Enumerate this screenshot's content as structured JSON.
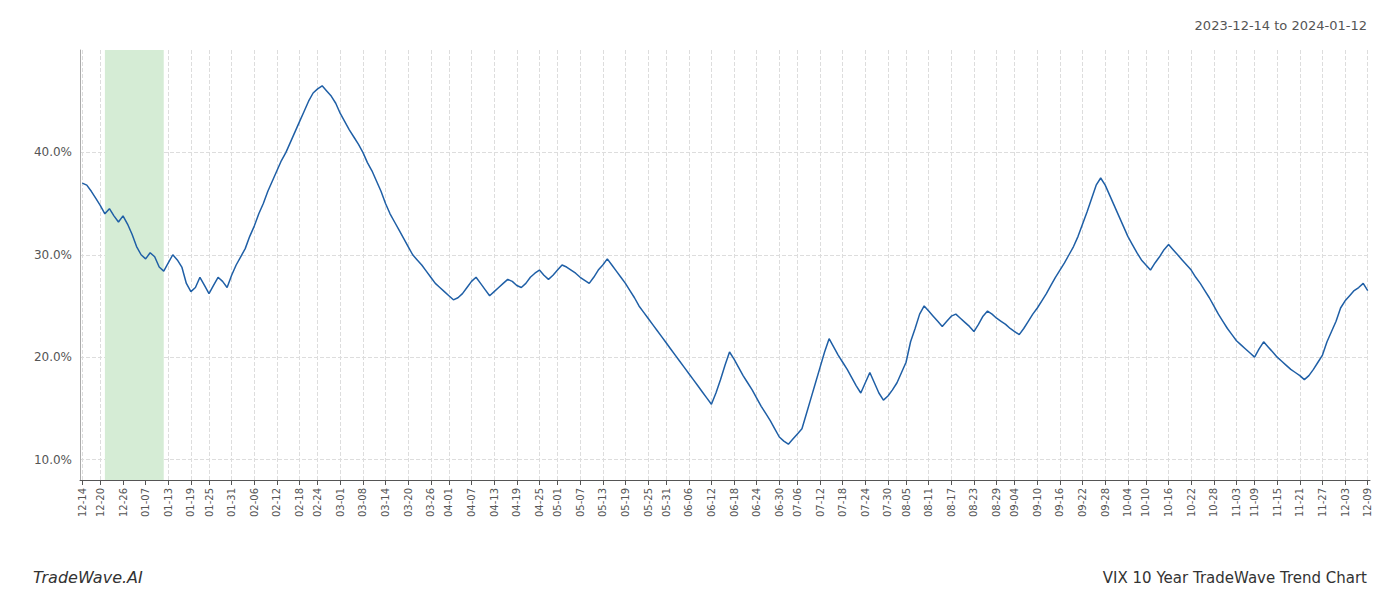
{
  "chart_data": {
    "type": "line",
    "title": "VIX 10 Year TradeWave Trend Chart",
    "subtitle": "2023-12-14 to 2024-01-12",
    "annotations": [
      "TradeWave.AI"
    ],
    "color": "#1f5fa6",
    "highlight": {
      "start": 5,
      "end": 18,
      "color": "#d5ecd5"
    },
    "ylim": [
      0.08,
      0.5
    ],
    "yticks": [
      {
        "value": 0.1,
        "label": "10.0%"
      },
      {
        "value": 0.2,
        "label": "20.0%"
      },
      {
        "value": 0.3,
        "label": "30.0%"
      },
      {
        "value": 0.4,
        "label": "40.0%"
      }
    ],
    "grid": true,
    "categories": [
      "12-14",
      null,
      null,
      null,
      "12-20",
      null,
      null,
      null,
      null,
      "12-26",
      null,
      null,
      null,
      null,
      "01-07",
      null,
      null,
      null,
      null,
      "01-13",
      null,
      null,
      null,
      null,
      "01-19",
      null,
      null,
      null,
      "01-25",
      null,
      null,
      null,
      null,
      "01-31",
      null,
      null,
      null,
      null,
      "02-06",
      null,
      null,
      null,
      null,
      "02-12",
      null,
      null,
      null,
      null,
      "02-18",
      null,
      null,
      null,
      "02-24",
      null,
      null,
      null,
      null,
      "03-01",
      null,
      null,
      null,
      null,
      "03-08",
      null,
      null,
      null,
      null,
      "03-14",
      null,
      null,
      null,
      null,
      "03-20",
      null,
      null,
      null,
      null,
      "03-26",
      null,
      null,
      null,
      "04-01",
      null,
      null,
      null,
      null,
      "04-07",
      null,
      null,
      null,
      null,
      "04-13",
      null,
      null,
      null,
      null,
      "04-19",
      null,
      null,
      null,
      null,
      "04-25",
      null,
      null,
      null,
      "05-01",
      null,
      null,
      null,
      null,
      "05-07",
      null,
      null,
      null,
      null,
      "05-13",
      null,
      null,
      null,
      null,
      "05-19",
      null,
      null,
      null,
      null,
      "05-25",
      null,
      null,
      null,
      "05-31",
      null,
      null,
      null,
      null,
      "06-06",
      null,
      null,
      null,
      null,
      "06-12",
      null,
      null,
      null,
      null,
      "06-18",
      null,
      null,
      null,
      null,
      "06-24",
      null,
      null,
      null,
      null,
      "06-30",
      null,
      null,
      null,
      "07-06",
      null,
      null,
      null,
      null,
      "07-12",
      null,
      null,
      null,
      null,
      "07-18",
      null,
      null,
      null,
      null,
      "07-24",
      null,
      null,
      null,
      null,
      "07-30",
      null,
      null,
      null,
      "08-05",
      null,
      null,
      null,
      null,
      "08-11",
      null,
      null,
      null,
      null,
      "08-17",
      null,
      null,
      null,
      null,
      "08-23",
      null,
      null,
      null,
      null,
      "08-29",
      null,
      null,
      null,
      "09-04",
      null,
      null,
      null,
      null,
      "09-10",
      null,
      null,
      null,
      null,
      "09-16",
      null,
      null,
      null,
      null,
      "09-22",
      null,
      null,
      null,
      null,
      "09-28",
      null,
      null,
      null,
      null,
      "10-04",
      null,
      null,
      null,
      "10-10",
      null,
      null,
      null,
      null,
      "10-16",
      null,
      null,
      null,
      null,
      "10-22",
      null,
      null,
      null,
      null,
      "10-28",
      null,
      null,
      null,
      null,
      "11-03",
      null,
      null,
      null,
      "11-09",
      null,
      null,
      null,
      null,
      "11-15",
      null,
      null,
      null,
      null,
      "11-21",
      null,
      null,
      null,
      null,
      "11-27",
      null,
      null,
      null,
      null,
      "12-03",
      null,
      null,
      null,
      null,
      "12-09"
    ],
    "values": [
      0.37,
      0.368,
      0.362,
      0.355,
      0.348,
      0.34,
      0.345,
      0.338,
      0.332,
      0.338,
      0.33,
      0.32,
      0.308,
      0.3,
      0.296,
      0.302,
      0.298,
      0.288,
      0.284,
      0.292,
      0.3,
      0.295,
      0.288,
      0.272,
      0.264,
      0.268,
      0.278,
      0.27,
      0.262,
      0.27,
      0.278,
      0.274,
      0.268,
      0.28,
      0.29,
      0.298,
      0.306,
      0.318,
      0.328,
      0.34,
      0.35,
      0.362,
      0.372,
      0.382,
      0.392,
      0.4,
      0.41,
      0.42,
      0.43,
      0.44,
      0.45,
      0.458,
      0.462,
      0.465,
      0.46,
      0.455,
      0.448,
      0.438,
      0.43,
      0.422,
      0.415,
      0.408,
      0.4,
      0.39,
      0.382,
      0.372,
      0.362,
      0.35,
      0.34,
      0.332,
      0.324,
      0.316,
      0.308,
      0.3,
      0.295,
      0.29,
      0.284,
      0.278,
      0.272,
      0.268,
      0.264,
      0.26,
      0.256,
      0.258,
      0.262,
      0.268,
      0.274,
      0.278,
      0.272,
      0.266,
      0.26,
      0.264,
      0.268,
      0.272,
      0.276,
      0.274,
      0.27,
      0.268,
      0.272,
      0.278,
      0.282,
      0.285,
      0.28,
      0.276,
      0.28,
      0.285,
      0.29,
      0.288,
      0.285,
      0.282,
      0.278,
      0.275,
      0.272,
      0.278,
      0.285,
      0.29,
      0.296,
      0.29,
      0.284,
      0.278,
      0.272,
      0.265,
      0.258,
      0.25,
      0.244,
      0.238,
      0.232,
      0.226,
      0.22,
      0.214,
      0.208,
      0.202,
      0.196,
      0.19,
      0.184,
      0.178,
      0.172,
      0.166,
      0.16,
      0.154,
      0.165,
      0.178,
      0.192,
      0.205,
      0.198,
      0.19,
      0.182,
      0.175,
      0.168,
      0.16,
      0.152,
      0.145,
      0.138,
      0.13,
      0.122,
      0.118,
      0.115,
      0.12,
      0.125,
      0.13,
      0.145,
      0.16,
      0.175,
      0.19,
      0.205,
      0.218,
      0.21,
      0.202,
      0.195,
      0.188,
      0.18,
      0.172,
      0.165,
      0.175,
      0.185,
      0.175,
      0.165,
      0.158,
      0.162,
      0.168,
      0.175,
      0.185,
      0.195,
      0.215,
      0.228,
      0.242,
      0.25,
      0.245,
      0.24,
      0.235,
      0.23,
      0.235,
      0.24,
      0.242,
      0.238,
      0.234,
      0.23,
      0.225,
      0.232,
      0.24,
      0.245,
      0.242,
      0.238,
      0.235,
      0.232,
      0.228,
      0.225,
      0.222,
      0.228,
      0.235,
      0.242,
      0.248,
      0.255,
      0.262,
      0.27,
      0.278,
      0.285,
      0.292,
      0.3,
      0.308,
      0.318,
      0.33,
      0.342,
      0.355,
      0.368,
      0.375,
      0.368,
      0.358,
      0.348,
      0.338,
      0.328,
      0.318,
      0.31,
      0.302,
      0.295,
      0.29,
      0.285,
      0.292,
      0.298,
      0.305,
      0.31,
      0.305,
      0.3,
      0.295,
      0.29,
      0.285,
      0.278,
      0.272,
      0.265,
      0.258,
      0.25,
      0.242,
      0.235,
      0.228,
      0.222,
      0.216,
      0.212,
      0.208,
      0.204,
      0.2,
      0.208,
      0.215,
      0.21,
      0.205,
      0.2,
      0.196,
      0.192,
      0.188,
      0.185,
      0.182,
      0.178,
      0.182,
      0.188,
      0.195,
      0.202,
      0.215,
      0.225,
      0.235,
      0.248,
      0.255,
      0.26,
      0.265,
      0.268,
      0.272,
      0.265
    ]
  }
}
